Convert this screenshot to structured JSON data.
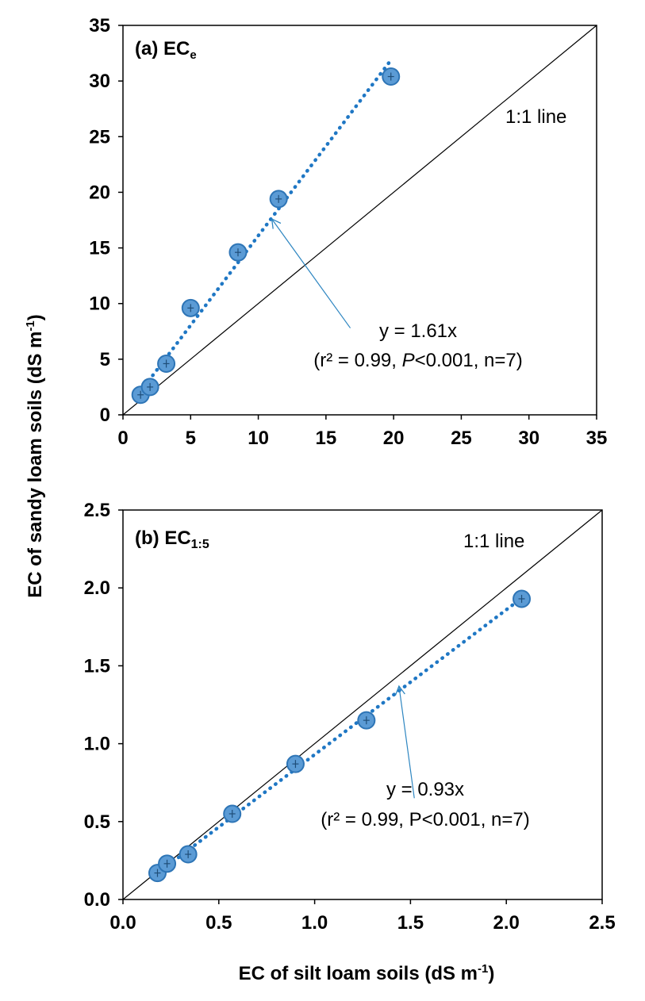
{
  "colors": {
    "marker_fill": "#5b9bd5",
    "marker_edge": "#2e75b6",
    "trendline": "#1f77c4",
    "one_to_one": "#000000",
    "arrow": "#2e86c1"
  },
  "shared_labels": {
    "xlabel_main": "EC of silt loam soils (dS m",
    "xlabel_sup": "-1",
    "xlabel_end": ")",
    "ylabel_main": "EC of sandy loam soils (dS m",
    "ylabel_sup": "-1",
    "ylabel_end": ")"
  },
  "chart_data": [
    {
      "type": "scatter",
      "panel_label": "(a) EC",
      "panel_label_sub": "e",
      "xlim": [
        0,
        35
      ],
      "ylim": [
        0,
        35
      ],
      "x_ticks": [
        "0",
        "5",
        "10",
        "15",
        "20",
        "25",
        "30",
        "35"
      ],
      "y_ticks": [
        "0",
        "5",
        "10",
        "15",
        "20",
        "25",
        "30",
        "35"
      ],
      "grid": false,
      "series": [
        {
          "x": [
            1.3,
            2.0,
            3.2,
            5.0,
            8.5,
            11.5,
            19.8
          ],
          "y": [
            1.8,
            2.5,
            4.6,
            9.6,
            14.6,
            19.4,
            30.4
          ]
        }
      ],
      "trendline": {
        "slope": 1.61,
        "x_start": 1.0,
        "x_end": 19.8
      },
      "one_to_one_label": "1:1 line",
      "equation": "y = 1.61x",
      "stats_open": "(r² = 0.99, ",
      "stats_italic": "P",
      "stats_close": "<0.001, n=7)",
      "arrow_from": [
        16.8,
        7.8
      ],
      "arrow_to": [
        11.0,
        17.6
      ]
    },
    {
      "type": "scatter",
      "panel_label": "(b) EC",
      "panel_label_sub": "1:5",
      "xlim": [
        0,
        2.5
      ],
      "ylim": [
        0,
        2.5
      ],
      "x_ticks": [
        "0.0",
        "0.5",
        "1.0",
        "1.5",
        "2.0",
        "2.5"
      ],
      "y_ticks": [
        "0.0",
        "0.5",
        "1.0",
        "1.5",
        "2.0",
        "2.5"
      ],
      "grid": false,
      "series": [
        {
          "x": [
            0.18,
            0.23,
            0.34,
            0.57,
            0.9,
            1.27,
            2.08
          ],
          "y": [
            0.17,
            0.23,
            0.29,
            0.55,
            0.87,
            1.15,
            1.93
          ]
        }
      ],
      "trendline": {
        "slope": 0.93,
        "x_start": 0.15,
        "x_end": 2.08
      },
      "one_to_one_label": "1:1 line",
      "equation": "y = 0.93x",
      "stats": "(r² = 0.99, P<0.001, n=7)",
      "arrow_from": [
        1.52,
        0.65
      ],
      "arrow_to": [
        1.44,
        1.37
      ]
    }
  ]
}
